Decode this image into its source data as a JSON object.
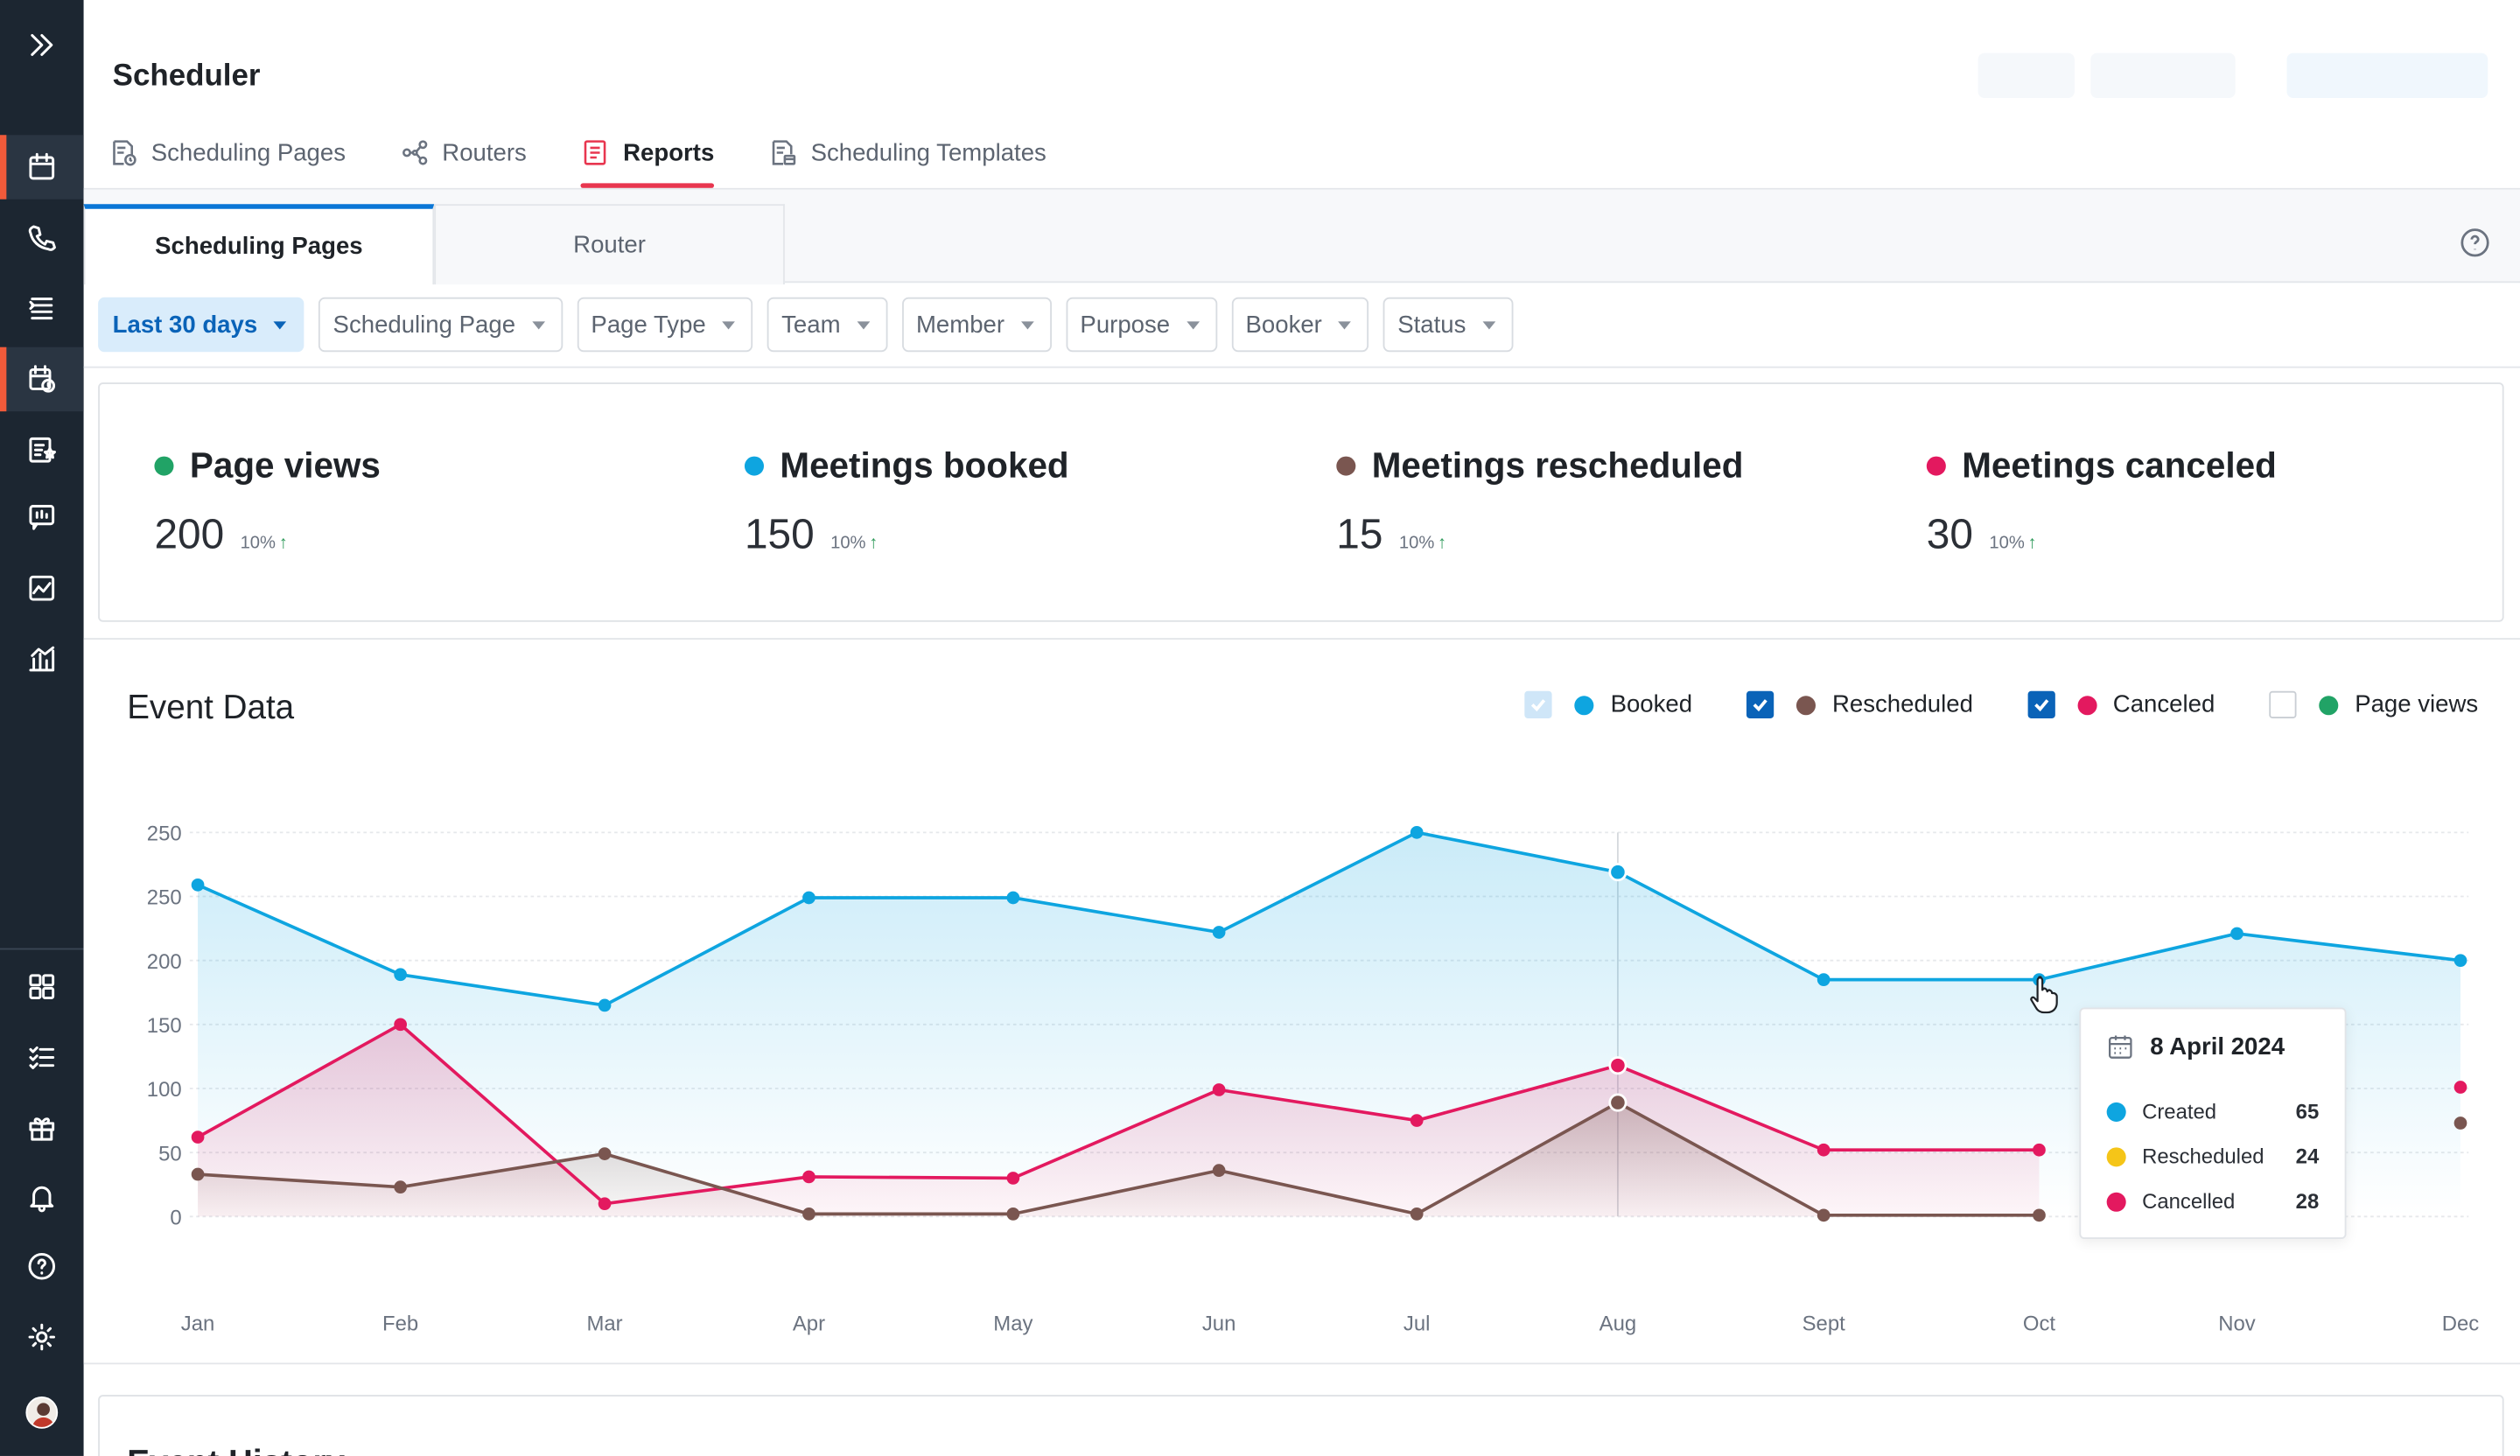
{
  "app": {
    "title": "Scheduler"
  },
  "nav_tabs": [
    {
      "label": "Scheduling Pages",
      "icon": "scheduling-page-icon",
      "active": false
    },
    {
      "label": "Routers",
      "icon": "routers-icon",
      "active": false
    },
    {
      "label": "Reports",
      "icon": "reports-icon",
      "active": true
    },
    {
      "label": "Scheduling Templates",
      "icon": "templates-icon",
      "active": false
    }
  ],
  "sub_tabs": [
    {
      "label": "Scheduling Pages",
      "active": true
    },
    {
      "label": "Router",
      "active": false
    }
  ],
  "filters": [
    {
      "label": "Last 30 days",
      "active": true
    },
    {
      "label": "Scheduling Page",
      "active": false
    },
    {
      "label": "Page Type",
      "active": false
    },
    {
      "label": "Team",
      "active": false
    },
    {
      "label": "Member",
      "active": false
    },
    {
      "label": "Purpose",
      "active": false
    },
    {
      "label": "Booker",
      "active": false
    },
    {
      "label": "Status",
      "active": false
    }
  ],
  "stats": [
    {
      "label": "Page views",
      "value": "200",
      "change": "10%",
      "color": "#21a366"
    },
    {
      "label": "Meetings booked",
      "value": "150",
      "change": "10%",
      "color": "#0ea5e0"
    },
    {
      "label": "Meetings rescheduled",
      "value": "15",
      "change": "10%",
      "color": "#7a5650"
    },
    {
      "label": "Meetings canceled",
      "value": "30",
      "change": "10%",
      "color": "#e3195f"
    }
  ],
  "event_data": {
    "title": "Event Data",
    "legend": [
      {
        "label": "Booked",
        "checked": true,
        "style": "light",
        "color": "#0ea5e0"
      },
      {
        "label": "Rescheduled",
        "checked": true,
        "style": "checked",
        "color": "#7a5650"
      },
      {
        "label": "Canceled",
        "checked": true,
        "style": "checked",
        "color": "#e3195f"
      },
      {
        "label": "Page views",
        "checked": false,
        "style": "empty",
        "color": "#21a366"
      }
    ]
  },
  "chart_data": {
    "type": "line",
    "categories": [
      "Jan",
      "Feb",
      "Mar",
      "Apr",
      "May",
      "Jun",
      "Jul",
      "Aug",
      "Sept",
      "Oct",
      "Nov",
      "Dec"
    ],
    "y_tick_labels": [
      "250",
      "250",
      "200",
      "150",
      "100",
      "50",
      "0"
    ],
    "ylim": [
      0,
      300
    ],
    "series": [
      {
        "name": "Booked",
        "color": "#0ea5e0",
        "values": [
          259,
          189,
          165,
          249,
          249,
          222,
          300,
          269,
          185,
          185,
          221,
          200
        ]
      },
      {
        "name": "Canceled",
        "color": "#e3195f",
        "values": [
          62,
          150,
          10,
          31,
          30,
          99,
          75,
          118,
          52,
          52,
          null,
          101
        ]
      },
      {
        "name": "Rescheduled",
        "color": "#7a5650",
        "values": [
          33,
          23,
          49,
          2,
          2,
          36,
          2,
          89,
          1,
          1,
          null,
          73
        ]
      }
    ],
    "hover_index": 7,
    "grid": true
  },
  "tooltip": {
    "date": "8 April 2024",
    "rows": [
      {
        "label": "Created",
        "value": "65",
        "color": "#0ea5e0"
      },
      {
        "label": "Rescheduled",
        "value": "24",
        "color": "#f5c518"
      },
      {
        "label": "Cancelled",
        "value": "28",
        "color": "#e3195f"
      }
    ]
  },
  "bottom_card": {
    "title": "Event History"
  }
}
